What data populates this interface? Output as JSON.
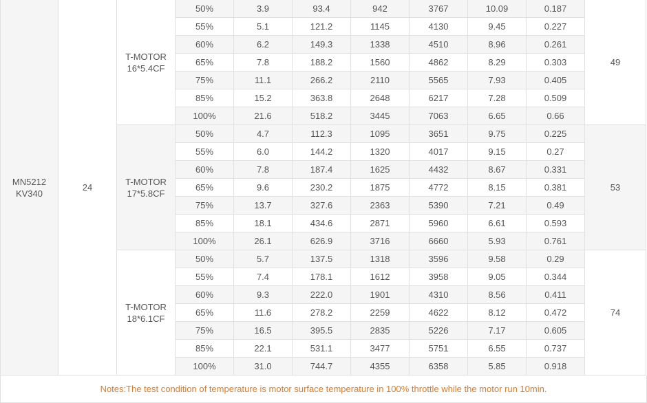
{
  "motor": "MN5212\nKV340",
  "voltage": "24",
  "groups": [
    {
      "prop": "T-MOTOR\n16*5.4CF",
      "temperature": "49",
      "rows": [
        [
          "50%",
          "3.9",
          "93.4",
          "942",
          "3767",
          "10.09",
          "0.187"
        ],
        [
          "55%",
          "5.1",
          "121.2",
          "1145",
          "4130",
          "9.45",
          "0.227"
        ],
        [
          "60%",
          "6.2",
          "149.3",
          "1338",
          "4510",
          "8.96",
          "0.261"
        ],
        [
          "65%",
          "7.8",
          "188.2",
          "1560",
          "4862",
          "8.29",
          "0.303"
        ],
        [
          "75%",
          "11.1",
          "266.2",
          "2110",
          "5565",
          "7.93",
          "0.405"
        ],
        [
          "85%",
          "15.2",
          "363.8",
          "2648",
          "6217",
          "7.28",
          "0.509"
        ],
        [
          "100%",
          "21.6",
          "518.2",
          "3445",
          "7063",
          "6.65",
          "0.66"
        ]
      ]
    },
    {
      "prop": "T-MOTOR\n17*5.8CF",
      "temperature": "53",
      "rows": [
        [
          "50%",
          "4.7",
          "112.3",
          "1095",
          "3651",
          "9.75",
          "0.225"
        ],
        [
          "55%",
          "6.0",
          "144.2",
          "1320",
          "4017",
          "9.15",
          "0.27"
        ],
        [
          "60%",
          "7.8",
          "187.4",
          "1625",
          "4432",
          "8.67",
          "0.331"
        ],
        [
          "65%",
          "9.6",
          "230.2",
          "1875",
          "4772",
          "8.15",
          "0.381"
        ],
        [
          "75%",
          "13.7",
          "327.6",
          "2363",
          "5390",
          "7.21",
          "0.49"
        ],
        [
          "85%",
          "18.1",
          "434.6",
          "2871",
          "5960",
          "6.61",
          "0.593"
        ],
        [
          "100%",
          "26.1",
          "626.9",
          "3716",
          "6660",
          "5.93",
          "0.761"
        ]
      ]
    },
    {
      "prop": "T-MOTOR\n18*6.1CF",
      "temperature": "74",
      "rows": [
        [
          "50%",
          "5.7",
          "137.5",
          "1318",
          "3596",
          "9.58",
          "0.29"
        ],
        [
          "55%",
          "7.4",
          "178.1",
          "1612",
          "3958",
          "9.05",
          "0.344"
        ],
        [
          "60%",
          "9.3",
          "222.0",
          "1901",
          "4310",
          "8.56",
          "0.411"
        ],
        [
          "65%",
          "11.6",
          "278.2",
          "2259",
          "4622",
          "8.12",
          "0.472"
        ],
        [
          "75%",
          "16.5",
          "395.5",
          "2835",
          "5226",
          "7.17",
          "0.605"
        ],
        [
          "85%",
          "22.1",
          "531.1",
          "3477",
          "5751",
          "6.55",
          "0.737"
        ],
        [
          "100%",
          "31.0",
          "744.7",
          "4355",
          "6358",
          "5.85",
          "0.918"
        ]
      ]
    }
  ],
  "note": "Notes:The test condition of temperature is motor surface temperature in 100% throttle while the motor run 10min."
}
